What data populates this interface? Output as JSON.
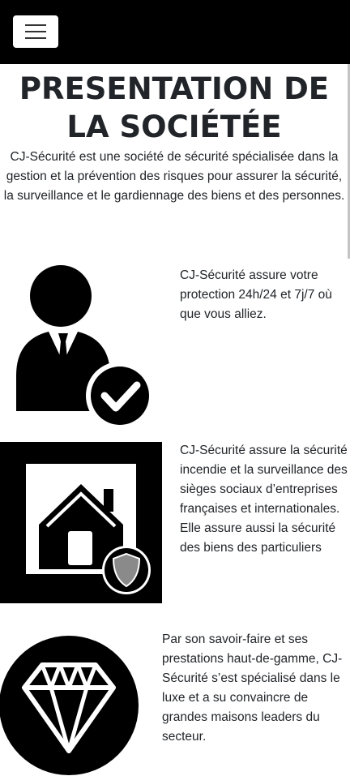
{
  "navbar": {
    "toggle_icon": "menu-icon"
  },
  "page": {
    "title": "PRESENTATION DE LA SOCIÉTÉE",
    "intro": "CJ-Sécurité est une société de sécurité spécialisée dans la gestion et la prévention des risques pour assurer la sécurité, la surveillance et le gardiennage des biens et des personnes."
  },
  "features": [
    {
      "icon": "security-agent-check-icon",
      "text": "CJ-Sécurité assure votre protection 24h/24 et 7j/7 où que vous alliez."
    },
    {
      "icon": "house-shield-icon",
      "text": "CJ-Sécurité assure la sécurité incendie et la surveillance des sièges sociaux d’entreprises françaises et internationales. Elle assure aussi la sécurité des biens des particuliers"
    },
    {
      "icon": "diamond-icon",
      "text": "Par son savoir-faire et ses prestations haut-de-gamme, CJ-Sécurité s’est spécialisé dans le luxe et a su convaincre de grandes maisons leaders du secteur."
    }
  ],
  "colors": {
    "navbar": "#000000",
    "text": "#212529",
    "background": "#ffffff"
  }
}
